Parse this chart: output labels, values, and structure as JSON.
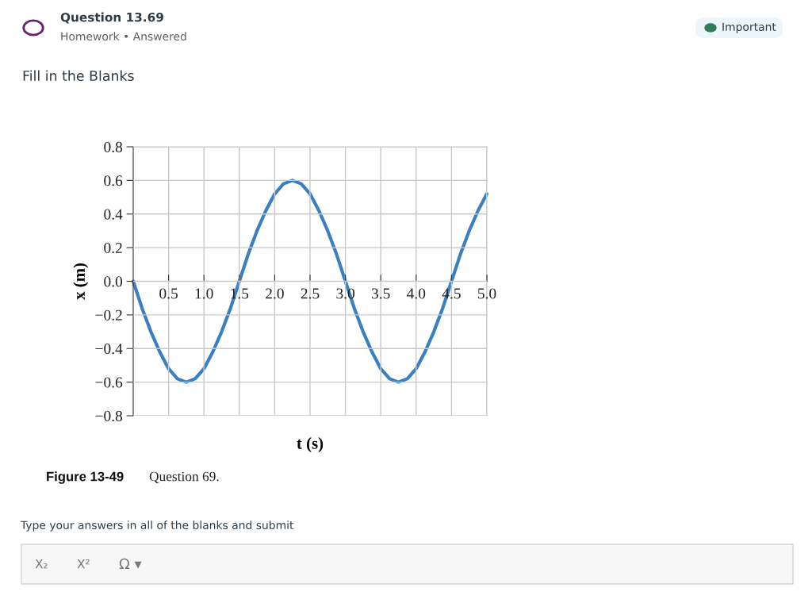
{
  "chart_data": {
    "type": "line",
    "title": "Question 13.69",
    "xlabel": "t (s)",
    "ylabel": "x (m)",
    "x": [
      0,
      0.125,
      0.25,
      0.375,
      0.5,
      0.625,
      0.75,
      0.875,
      1.0,
      1.125,
      1.25,
      1.375,
      1.5,
      1.625,
      1.75,
      1.875,
      2.0,
      2.125,
      2.25,
      2.375,
      2.5,
      2.625,
      2.75,
      2.875,
      3.0,
      3.125,
      3.25,
      3.375,
      3.5,
      3.625,
      3.75,
      3.875,
      4.0,
      4.125,
      4.25,
      4.375,
      4.5,
      4.625,
      4.75,
      4.875,
      5.0
    ],
    "series": [
      {
        "color": "#3a7fc1",
        "values": [
          0,
          -0.16,
          -0.3,
          -0.42,
          -0.52,
          -0.58,
          -0.6,
          -0.58,
          -0.52,
          -0.42,
          -0.3,
          -0.16,
          0,
          0.16,
          0.3,
          0.42,
          0.52,
          0.58,
          0.6,
          0.58,
          0.52,
          0.42,
          0.3,
          0.16,
          0,
          -0.16,
          -0.3,
          -0.42,
          -0.52,
          -0.58,
          -0.6,
          -0.58,
          -0.52,
          -0.42,
          -0.3,
          -0.16,
          0,
          0.16,
          0.3,
          0.42,
          0.52
        ]
      }
    ],
    "xlim": [
      0,
      5.0
    ],
    "ylim": [
      -0.8,
      0.8
    ],
    "xticks": [
      {
        "value": 0.5,
        "label": "0.5"
      },
      {
        "value": 1.0,
        "label": "1.0"
      },
      {
        "value": 1.5,
        "label": "1.5"
      },
      {
        "value": 2.0,
        "label": "2.0"
      },
      {
        "value": 2.5,
        "label": "2.5"
      },
      {
        "value": 3.0,
        "label": "3.0"
      },
      {
        "value": 3.5,
        "label": "3.5"
      },
      {
        "value": 4.0,
        "label": "4.0"
      },
      {
        "value": 4.5,
        "label": "4.5"
      },
      {
        "value": 5.0,
        "label": "5.0"
      }
    ],
    "yticks": [
      {
        "value": -0.8,
        "label": "−0.8"
      },
      {
        "value": -0.6,
        "label": "−0.6"
      },
      {
        "value": -0.4,
        "label": "−0.4"
      },
      {
        "value": -0.2,
        "label": "−0.2"
      },
      {
        "value": 0,
        "label": "0.0"
      },
      {
        "value": 0.2,
        "label": "0.2"
      },
      {
        "value": 0.4,
        "label": "0.4"
      },
      {
        "value": 0.6,
        "label": "0.6"
      },
      {
        "value": 0.8,
        "label": "0.8"
      }
    ],
    "grid": true,
    "marker": "none",
    "line_style": "solid",
    "legend": false,
    "annotations": [
      "Homework • Answered",
      "Important",
      "Fill in the Blanks",
      "Figure 13-49",
      "Question 69.",
      "Type your answers in all of the blanks and submit",
      "X₂",
      "X²",
      "Ω ▾"
    ]
  }
}
